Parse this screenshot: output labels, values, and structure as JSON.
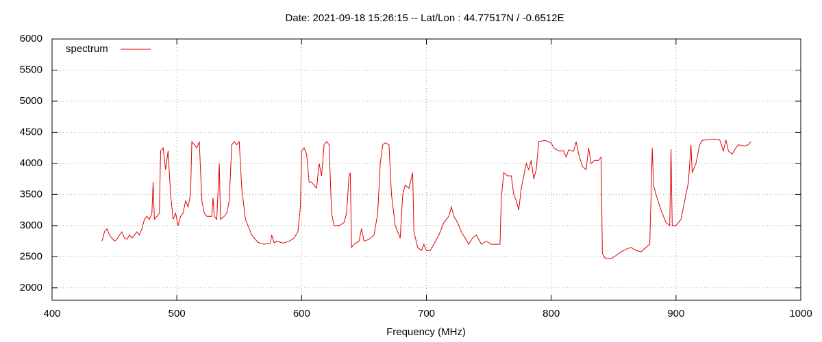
{
  "chart_data": {
    "type": "line",
    "title": "Date: 2021-09-18 15:26:15  --  Lat/Lon : 44.77517N / -0.6512E",
    "x_label": "Frequency (MHz)",
    "x": [
      440,
      442,
      444,
      446,
      448,
      450,
      452,
      454,
      456,
      458,
      460,
      462,
      464,
      466,
      468,
      470,
      472,
      474,
      476,
      478,
      480,
      481,
      482,
      484,
      486,
      487,
      489,
      491,
      493,
      495,
      497,
      499,
      501,
      503,
      505,
      507,
      509,
      511,
      512,
      514,
      516,
      518,
      520,
      522,
      524,
      526,
      528,
      529,
      530,
      532,
      534,
      535,
      538,
      540,
      542,
      544,
      546,
      548,
      550,
      552,
      555,
      560,
      565,
      570,
      575,
      576,
      578,
      580,
      585,
      590,
      594,
      597,
      599,
      600,
      602,
      604,
      606,
      608,
      610,
      612,
      614,
      616,
      618,
      620,
      622,
      624,
      626,
      630,
      634,
      636,
      638,
      639,
      640,
      642,
      646,
      648,
      650,
      654,
      658,
      661,
      663,
      665,
      667,
      670,
      672,
      675,
      679,
      681,
      683,
      686,
      689,
      690,
      693,
      696,
      698,
      700,
      703,
      706,
      710,
      714,
      718,
      720,
      722,
      725,
      728,
      731,
      734,
      737,
      740,
      744,
      748,
      752,
      756,
      759,
      760,
      762,
      765,
      768,
      770,
      772,
      774,
      776,
      778,
      780,
      782,
      784,
      786,
      788,
      790,
      795,
      800,
      802,
      806,
      810,
      812,
      814,
      816,
      818,
      820,
      822,
      825,
      828,
      830,
      832,
      835,
      838,
      840,
      841,
      843,
      848,
      852,
      856,
      860,
      864,
      868,
      872,
      876,
      879,
      881,
      882,
      884,
      888,
      892,
      895,
      896,
      897,
      900,
      904,
      908,
      910,
      912,
      913,
      916,
      919,
      921,
      925,
      930,
      935,
      938,
      940,
      942,
      945,
      948,
      950,
      955,
      958,
      960
    ],
    "series": [
      {
        "name": "spectrum",
        "color": "#e00000",
        "values": [
          2750,
          2900,
          2950,
          2850,
          2800,
          2750,
          2780,
          2850,
          2900,
          2800,
          2780,
          2850,
          2800,
          2850,
          2900,
          2850,
          2950,
          3100,
          3150,
          3100,
          3200,
          3700,
          3100,
          3150,
          3200,
          4200,
          4250,
          3900,
          4200,
          3500,
          3100,
          3200,
          3000,
          3150,
          3200,
          3400,
          3300,
          3500,
          4350,
          4300,
          4250,
          4350,
          3400,
          3200,
          3150,
          3150,
          3150,
          3450,
          3150,
          3100,
          4000,
          3100,
          3150,
          3200,
          3400,
          4300,
          4350,
          4300,
          4350,
          3600,
          3100,
          2850,
          2730,
          2700,
          2720,
          2850,
          2720,
          2750,
          2720,
          2750,
          2800,
          2900,
          3300,
          4200,
          4250,
          4150,
          3700,
          3700,
          3650,
          3600,
          4000,
          3800,
          4300,
          4350,
          4300,
          3200,
          3000,
          3000,
          3050,
          3200,
          3800,
          3850,
          2650,
          2700,
          2750,
          2950,
          2750,
          2780,
          2850,
          3200,
          4000,
          4300,
          4330,
          4300,
          3500,
          3000,
          2800,
          3500,
          3650,
          3600,
          3850,
          2900,
          2650,
          2600,
          2700,
          2600,
          2600,
          2700,
          2850,
          3050,
          3150,
          3300,
          3150,
          3050,
          2900,
          2800,
          2700,
          2800,
          2850,
          2700,
          2750,
          2700,
          2700,
          2700,
          3450,
          3850,
          3800,
          3800,
          3500,
          3400,
          3250,
          3600,
          3800,
          4000,
          3900,
          4050,
          3750,
          3900,
          4350,
          4370,
          4330,
          4250,
          4200,
          4200,
          4100,
          4220,
          4200,
          4200,
          4350,
          4150,
          3950,
          3900,
          4250,
          4000,
          4050,
          4050,
          4100,
          2550,
          2480,
          2470,
          2520,
          2580,
          2620,
          2650,
          2600,
          2580,
          2650,
          2700,
          4250,
          3650,
          3500,
          3250,
          3050,
          3000,
          4230,
          3000,
          3000,
          3100,
          3500,
          3700,
          4300,
          3850,
          4000,
          4300,
          4370,
          4380,
          4390,
          4380,
          4200,
          4380,
          4200,
          4150,
          4250,
          4300,
          4280,
          4300,
          4350
        ]
      }
    ],
    "xlim": [
      400,
      1000
    ],
    "xticks": [
      400,
      500,
      600,
      700,
      800,
      900,
      1000
    ],
    "ylim": [
      1800,
      6000
    ],
    "yticks": [
      2000,
      2500,
      3000,
      3500,
      4000,
      4500,
      5000,
      5500,
      6000
    ],
    "grid": true,
    "legend": "top-left"
  }
}
